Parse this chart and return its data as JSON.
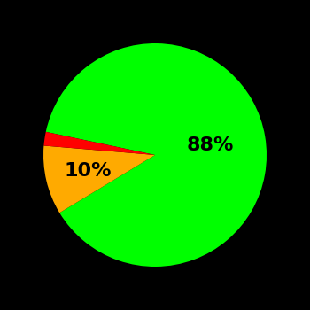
{
  "slices": [
    88,
    10,
    2
  ],
  "colors": [
    "#00ff00",
    "#ffaa00",
    "#ff0000"
  ],
  "background_color": "#000000",
  "text_color": "#000000",
  "startangle": 168,
  "counterclock": false,
  "label_fontsize": 16,
  "figsize": [
    3.5,
    3.5
  ],
  "dpi": 100,
  "green_label": "88%",
  "yellow_label": "10%",
  "green_r": 0.5,
  "yellow_r": 0.62
}
